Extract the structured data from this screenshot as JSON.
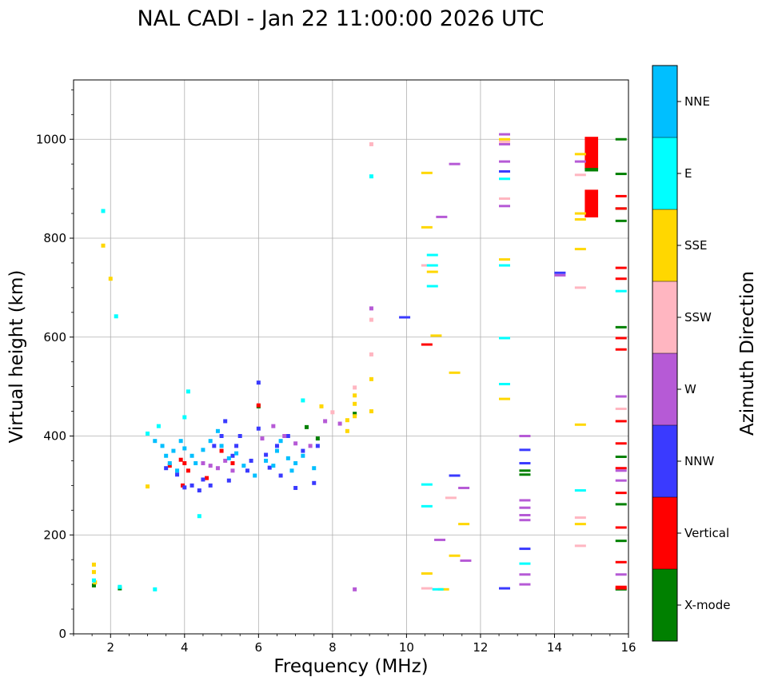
{
  "chart_data": {
    "type": "scatter",
    "title": "NAL CADI - Jan 22 11:00:00 2026 UTC",
    "xlabel": "Frequency (MHz)",
    "ylabel": "Virtual height (km)",
    "xlim": [
      1,
      16
    ],
    "ylim": [
      0,
      1120
    ],
    "xticks": [
      2,
      4,
      6,
      8,
      10,
      12,
      14,
      16
    ],
    "yticks": [
      0,
      200,
      400,
      600,
      800,
      1000
    ],
    "grid": true,
    "colorbar": {
      "title": "Azimuth Direction",
      "categories": [
        {
          "label": "X-mode",
          "color": "#008000"
        },
        {
          "label": "Vertical",
          "color": "#ff0000"
        },
        {
          "label": "NNW",
          "color": "#3a3aff"
        },
        {
          "label": "W",
          "color": "#b65ad6"
        },
        {
          "label": "SSW",
          "color": "#ffb6c1"
        },
        {
          "label": "SSE",
          "color": "#ffd700"
        },
        {
          "label": "E",
          "color": "#00ffff"
        },
        {
          "label": "NNE",
          "color": "#00bfff"
        }
      ]
    },
    "series": [
      {
        "name": "X-mode",
        "points": [
          [
            1.55,
            98
          ],
          [
            2.25,
            92
          ],
          [
            7.6,
            395
          ],
          [
            8.6,
            445
          ],
          [
            13.2,
            330
          ],
          [
            13.2,
            322
          ],
          [
            15.8,
            1000
          ],
          [
            15.8,
            930
          ],
          [
            15.8,
            860
          ],
          [
            15.8,
            835
          ],
          [
            15.8,
            620
          ],
          [
            15.8,
            358
          ],
          [
            15.8,
            262
          ],
          [
            15.8,
            188
          ],
          [
            15.8,
            90
          ],
          [
            6.0,
            460
          ],
          [
            7.3,
            418
          ]
        ]
      },
      {
        "name": "Vertical",
        "points": [
          [
            3.6,
            340
          ],
          [
            3.9,
            352
          ],
          [
            4.0,
            345
          ],
          [
            3.95,
            300
          ],
          [
            4.1,
            330
          ],
          [
            4.6,
            315
          ],
          [
            5.0,
            370
          ],
          [
            5.3,
            345
          ],
          [
            6.0,
            462
          ],
          [
            10.55,
            585
          ],
          [
            15.8,
            885
          ],
          [
            15.8,
            860
          ],
          [
            15.8,
            740
          ],
          [
            15.8,
            718
          ],
          [
            15.8,
            598
          ],
          [
            15.8,
            575
          ],
          [
            15.8,
            430
          ],
          [
            15.8,
            385
          ],
          [
            15.8,
            335
          ],
          [
            15.8,
            285
          ],
          [
            15.8,
            215
          ],
          [
            15.8,
            145
          ],
          [
            15.8,
            95
          ],
          [
            15.8,
            92
          ]
        ]
      },
      {
        "name": "NNW",
        "points": [
          [
            3.5,
            335
          ],
          [
            3.8,
            322
          ],
          [
            4.0,
            296
          ],
          [
            4.2,
            300
          ],
          [
            4.4,
            290
          ],
          [
            4.5,
            312
          ],
          [
            4.7,
            300
          ],
          [
            4.8,
            380
          ],
          [
            5.0,
            400
          ],
          [
            5.1,
            430
          ],
          [
            5.2,
            310
          ],
          [
            5.3,
            360
          ],
          [
            5.4,
            380
          ],
          [
            5.5,
            400
          ],
          [
            5.7,
            330
          ],
          [
            5.8,
            350
          ],
          [
            6.0,
            415
          ],
          [
            6.0,
            508
          ],
          [
            6.2,
            362
          ],
          [
            6.3,
            336
          ],
          [
            6.5,
            380
          ],
          [
            6.6,
            320
          ],
          [
            6.8,
            400
          ],
          [
            7.0,
            295
          ],
          [
            7.2,
            370
          ],
          [
            7.5,
            305
          ],
          [
            7.6,
            380
          ],
          [
            9.95,
            640
          ],
          [
            11.3,
            320
          ],
          [
            12.65,
            935
          ],
          [
            12.65,
            92
          ],
          [
            13.2,
            372
          ],
          [
            13.2,
            345
          ],
          [
            13.2,
            172
          ],
          [
            14.15,
            730
          ]
        ]
      },
      {
        "name": "W",
        "points": [
          [
            4.5,
            345
          ],
          [
            4.7,
            340
          ],
          [
            4.9,
            335
          ],
          [
            5.1,
            350
          ],
          [
            5.3,
            330
          ],
          [
            6.1,
            395
          ],
          [
            6.4,
            420
          ],
          [
            6.7,
            400
          ],
          [
            7.0,
            385
          ],
          [
            7.4,
            380
          ],
          [
            7.8,
            430
          ],
          [
            8.2,
            425
          ],
          [
            8.6,
            90
          ],
          [
            9.05,
            658
          ],
          [
            10.9,
            190
          ],
          [
            10.95,
            843
          ],
          [
            11.3,
            950
          ],
          [
            11.55,
            295
          ],
          [
            11.6,
            148
          ],
          [
            12.65,
            1010
          ],
          [
            12.65,
            990
          ],
          [
            12.65,
            955
          ],
          [
            12.65,
            865
          ],
          [
            13.2,
            400
          ],
          [
            13.2,
            270
          ],
          [
            13.2,
            255
          ],
          [
            13.2,
            240
          ],
          [
            13.2,
            230
          ],
          [
            13.2,
            120
          ],
          [
            13.2,
            100
          ],
          [
            14.15,
            725
          ],
          [
            14.7,
            955
          ],
          [
            15.8,
            480
          ],
          [
            15.8,
            330
          ],
          [
            15.8,
            310
          ],
          [
            15.8,
            120
          ]
        ]
      },
      {
        "name": "SSW",
        "points": [
          [
            9.05,
            990
          ],
          [
            9.05,
            635
          ],
          [
            9.05,
            565
          ],
          [
            8.6,
            498
          ],
          [
            10.55,
            745
          ],
          [
            10.55,
            92
          ],
          [
            11.2,
            275
          ],
          [
            12.65,
            880
          ],
          [
            12.65,
            995
          ],
          [
            14.7,
            928
          ],
          [
            14.7,
            700
          ],
          [
            14.7,
            235
          ],
          [
            14.7,
            178
          ],
          [
            15.8,
            455
          ],
          [
            8.0,
            448
          ]
        ]
      },
      {
        "name": "SSE",
        "points": [
          [
            1.55,
            140
          ],
          [
            1.55,
            125
          ],
          [
            1.58,
            104
          ],
          [
            1.8,
            785
          ],
          [
            2.0,
            718
          ],
          [
            3.0,
            298
          ],
          [
            7.7,
            460
          ],
          [
            8.4,
            410
          ],
          [
            8.4,
            432
          ],
          [
            8.6,
            440
          ],
          [
            8.6,
            482
          ],
          [
            8.6,
            465
          ],
          [
            9.05,
            515
          ],
          [
            9.05,
            450
          ],
          [
            10.55,
            932
          ],
          [
            10.55,
            822
          ],
          [
            10.7,
            732
          ],
          [
            10.8,
            603
          ],
          [
            11.3,
            528
          ],
          [
            10.55,
            122
          ],
          [
            11.0,
            90
          ],
          [
            11.55,
            222
          ],
          [
            11.3,
            158
          ],
          [
            12.65,
            1000
          ],
          [
            12.65,
            757
          ],
          [
            12.65,
            475
          ],
          [
            14.7,
            970
          ],
          [
            14.7,
            850
          ],
          [
            14.7,
            838
          ],
          [
            14.7,
            778
          ],
          [
            14.7,
            423
          ],
          [
            14.7,
            222
          ]
        ]
      },
      {
        "name": "E",
        "points": [
          [
            1.55,
            108
          ],
          [
            1.8,
            855
          ],
          [
            2.15,
            642
          ],
          [
            2.25,
            95
          ],
          [
            3.0,
            405
          ],
          [
            3.2,
            90
          ],
          [
            3.3,
            420
          ],
          [
            4.1,
            490
          ],
          [
            4.4,
            238
          ],
          [
            9.05,
            925
          ],
          [
            10.55,
            302
          ],
          [
            10.55,
            258
          ],
          [
            10.7,
            766
          ],
          [
            10.7,
            745
          ],
          [
            10.7,
            703
          ],
          [
            10.85,
            90
          ],
          [
            12.65,
            920
          ],
          [
            12.65,
            745
          ],
          [
            12.65,
            598
          ],
          [
            12.65,
            505
          ],
          [
            13.2,
            142
          ],
          [
            14.7,
            290
          ],
          [
            15.8,
            693
          ],
          [
            7.2,
            472
          ],
          [
            4.0,
            438
          ]
        ]
      },
      {
        "name": "NNE",
        "points": [
          [
            3.2,
            390
          ],
          [
            3.4,
            380
          ],
          [
            3.5,
            360
          ],
          [
            3.6,
            345
          ],
          [
            3.7,
            370
          ],
          [
            3.8,
            330
          ],
          [
            3.9,
            390
          ],
          [
            4.0,
            375
          ],
          [
            4.2,
            360
          ],
          [
            4.3,
            345
          ],
          [
            4.5,
            372
          ],
          [
            4.7,
            390
          ],
          [
            4.9,
            410
          ],
          [
            5.0,
            380
          ],
          [
            5.2,
            355
          ],
          [
            5.4,
            365
          ],
          [
            5.6,
            340
          ],
          [
            5.9,
            320
          ],
          [
            6.2,
            350
          ],
          [
            6.4,
            340
          ],
          [
            6.5,
            370
          ],
          [
            6.8,
            355
          ],
          [
            7.0,
            345
          ],
          [
            7.2,
            360
          ],
          [
            7.5,
            335
          ],
          [
            6.6,
            390
          ],
          [
            6.9,
            330
          ]
        ]
      }
    ],
    "blocks": [
      {
        "name": "Vertical",
        "x0": 14.82,
        "x1": 15.18,
        "y0": 940,
        "y1": 1005
      },
      {
        "name": "Vertical",
        "x0": 14.82,
        "x1": 15.18,
        "y0": 842,
        "y1": 898
      },
      {
        "name": "X-mode",
        "x0": 14.82,
        "x1": 15.18,
        "y0": 935,
        "y1": 942
      }
    ]
  }
}
